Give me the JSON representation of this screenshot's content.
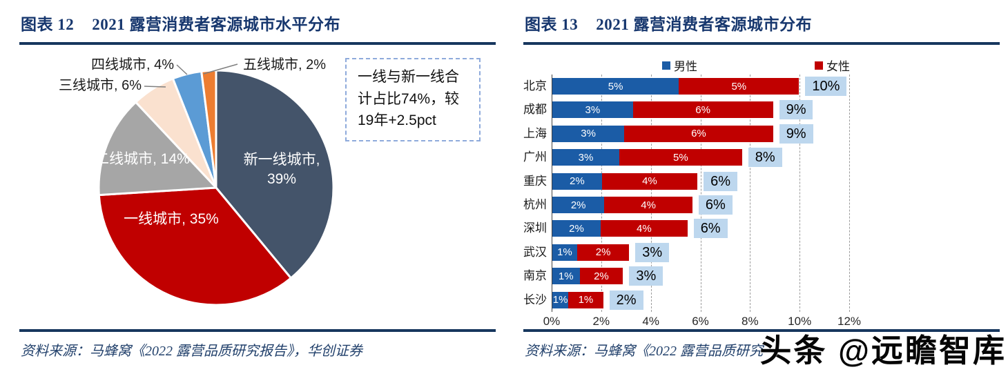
{
  "page": {
    "watermark": "头条 @远瞻智库"
  },
  "left_chart": {
    "figure_label": "图表 12",
    "title": "2021 露营消费者客源城市水平分布",
    "annotation": "一线与新一线合计占比74%，较19年+2.5pct",
    "source": "资料来源：马蜂窝《2022 露营品质研究报告》，华创证券",
    "chart_data": {
      "type": "pie",
      "title": "2021 露营消费者客源城市水平分布",
      "start_angle": "12点钟方向顺时针",
      "slices": [
        {
          "label": "新一线城市",
          "value": 39,
          "display": "新一线城市, 39%",
          "color": "#44546A",
          "label_placement": "inside"
        },
        {
          "label": "一线城市",
          "value": 35,
          "display": "一线城市, 35%",
          "color": "#C00000",
          "label_placement": "inside"
        },
        {
          "label": "二线城市",
          "value": 14,
          "display": "二线城市, 14%",
          "color": "#A6A6A6",
          "label_placement": "inside"
        },
        {
          "label": "三线城市",
          "value": 6,
          "display": "三线城市, 6%",
          "color": "#FAE1CF",
          "label_placement": "outside"
        },
        {
          "label": "四线城市",
          "value": 4,
          "display": "四线城市, 4%",
          "color": "#5B9BD5",
          "label_placement": "outside"
        },
        {
          "label": "五线城市",
          "value": 2,
          "display": "五线城市, 2%",
          "color": "#ED7D31",
          "label_placement": "outside"
        }
      ],
      "annotation": "一线与新一线合计占比74%，较19年+2.5pct"
    }
  },
  "right_chart": {
    "figure_label": "图表 13",
    "title": "2021 露营消费者客源城市分布",
    "source": "资料来源：马蜂窝《2022 露营品质研究",
    "chart_data": {
      "type": "bar",
      "orientation": "horizontal-stacked",
      "categories": [
        "北京",
        "成都",
        "上海",
        "广州",
        "重庆",
        "杭州",
        "深圳",
        "武汉",
        "南京",
        "长沙"
      ],
      "series": [
        {
          "name": "男性",
          "color": "#1B5CA6",
          "values": [
            5,
            3,
            3,
            3,
            2,
            2,
            2,
            1,
            1,
            1
          ],
          "labels": [
            "5%",
            "3%",
            "3%",
            "3%",
            "2%",
            "2%",
            "2%",
            "1%",
            "1%",
            "1%"
          ],
          "est_values": [
            5.1,
            3.25,
            2.9,
            2.7,
            2.0,
            2.1,
            1.95,
            1.0,
            1.1,
            0.65
          ]
        },
        {
          "name": "女性",
          "color": "#C00000",
          "values": [
            5,
            6,
            6,
            5,
            4,
            4,
            4,
            2,
            2,
            1
          ],
          "labels": [
            "5%",
            "6%",
            "6%",
            "5%",
            "4%",
            "4%",
            "4%",
            "2%",
            "2%",
            "1%"
          ],
          "est_values": [
            4.85,
            5.65,
            6.0,
            4.95,
            3.85,
            3.55,
            3.5,
            2.1,
            1.75,
            1.4
          ]
        }
      ],
      "totals": [
        10,
        9,
        9,
        8,
        6,
        6,
        6,
        3,
        3,
        2
      ],
      "total_labels": [
        "10%",
        "9%",
        "9%",
        "8%",
        "6%",
        "6%",
        "6%",
        "3%",
        "3%",
        "2%"
      ],
      "total_label_bg": "#BDD7EE",
      "x_axis": {
        "ticks": [
          "0%",
          "2%",
          "4%",
          "6%",
          "8%",
          "10%",
          "12%"
        ],
        "min": 0,
        "max": 12,
        "grid": "dashed"
      },
      "legend_position": "top"
    }
  }
}
